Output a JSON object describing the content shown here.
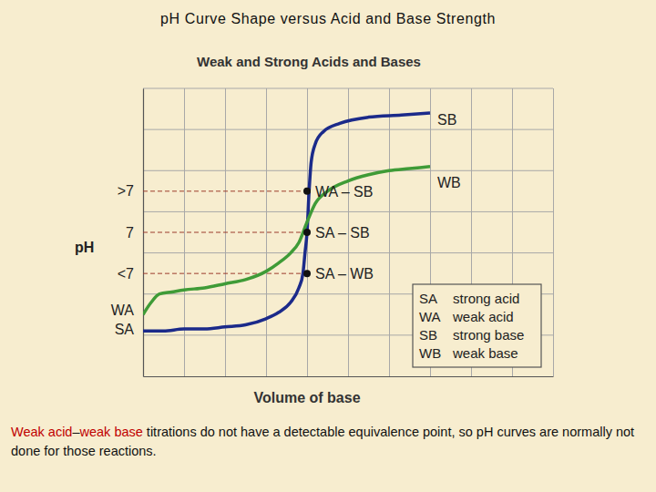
{
  "chart_data": {
    "type": "line",
    "page_title": "pH Curve Shape versus Acid and Base Strength",
    "title": "Weak and Strong Acids and Bases",
    "x_label": "Volume of base",
    "y_label": "pH",
    "xlim": [
      0,
      10
    ],
    "xticks": [
      0,
      1,
      2,
      3,
      4,
      5,
      6,
      7,
      8,
      9,
      10
    ],
    "ylim": [
      0,
      14
    ],
    "yticks": [
      {
        "value": 9,
        "label": ">7"
      },
      7,
      {
        "value": 5,
        "label": "<7"
      },
      {
        "value": 3.2,
        "label": "WA"
      },
      {
        "value": 2.3,
        "label": "SA"
      }
    ],
    "grid": true,
    "tick_labels": "y",
    "series": [
      {
        "name": "SB",
        "color": "#1b2a8a",
        "x": [
          0,
          0.5,
          1,
          1.5,
          2,
          2.5,
          3,
          3.3,
          3.6,
          3.8,
          3.9,
          3.95,
          4.0,
          4.05,
          4.1,
          4.2,
          4.4,
          4.8,
          5.5,
          6.3,
          7.0
        ],
        "values": [
          2.2,
          2.2,
          2.3,
          2.3,
          2.4,
          2.5,
          2.8,
          3.1,
          3.6,
          4.3,
          5.0,
          6.0,
          7.0,
          9.0,
          10.4,
          11.3,
          11.9,
          12.3,
          12.6,
          12.7,
          12.8
        ]
      },
      {
        "name": "WB",
        "color": "#3f9b37",
        "x": [
          0,
          0.2,
          0.4,
          0.7,
          1,
          1.5,
          2,
          2.5,
          3,
          3.3,
          3.6,
          3.8,
          4.0,
          4.2,
          4.5,
          5,
          5.5,
          6,
          6.5,
          7.0
        ],
        "values": [
          3.0,
          3.6,
          4.0,
          4.1,
          4.2,
          4.3,
          4.5,
          4.7,
          5.1,
          5.5,
          6.0,
          6.5,
          7.5,
          8.4,
          9.0,
          9.5,
          9.8,
          10.0,
          10.1,
          10.2
        ]
      }
    ],
    "points": [
      {
        "label": "WA – SB",
        "x": 4,
        "y": 9
      },
      {
        "label": "SA – SB",
        "x": 4,
        "y": 7
      },
      {
        "label": "SA – WB",
        "x": 4,
        "y": 5
      }
    ],
    "key": [
      {
        "abbr": "SA",
        "text": "strong acid"
      },
      {
        "abbr": "WA",
        "text": "weak acid"
      },
      {
        "abbr": "SB",
        "text": "strong base"
      },
      {
        "abbr": "WB",
        "text": "weak base"
      }
    ],
    "footnote": [
      {
        "text": "Weak acid",
        "color": "#c00000"
      },
      {
        "text": "–"
      },
      {
        "text": "weak base",
        "color": "#c00000"
      },
      {
        "text": " titrations do not have a detectable equivalence point, so pH curves are normally not done for those reactions."
      }
    ]
  }
}
